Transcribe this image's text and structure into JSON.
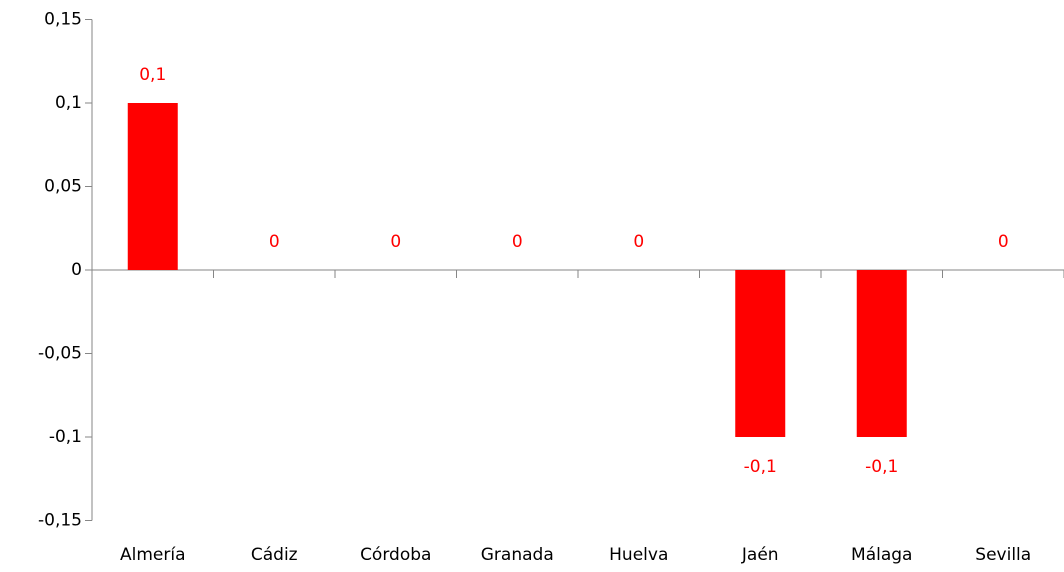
{
  "chart_data": {
    "type": "bar",
    "categories": [
      "Almería",
      "Cádiz",
      "Córdoba",
      "Granada",
      "Huelva",
      "Jaén",
      "Málaga",
      "Sevilla"
    ],
    "values": [
      0.1,
      0,
      0,
      0,
      0,
      -0.1,
      -0.1,
      0
    ],
    "value_labels": [
      "0,1",
      "0",
      "0",
      "0",
      "0",
      "-0,1",
      "-0,1",
      "0"
    ],
    "color": "#ff0000",
    "ylim": [
      -0.15,
      0.15
    ],
    "yticks": [
      {
        "value": -0.15,
        "label": "-0,15"
      },
      {
        "value": -0.1,
        "label": "-0,1"
      },
      {
        "value": -0.05,
        "label": "-0,05"
      },
      0,
      {
        "value": 0.05,
        "label": "0,05"
      },
      {
        "value": 0.1,
        "label": "0,1"
      },
      {
        "value": 0.15,
        "label": "0,15"
      }
    ],
    "grid": false
  }
}
